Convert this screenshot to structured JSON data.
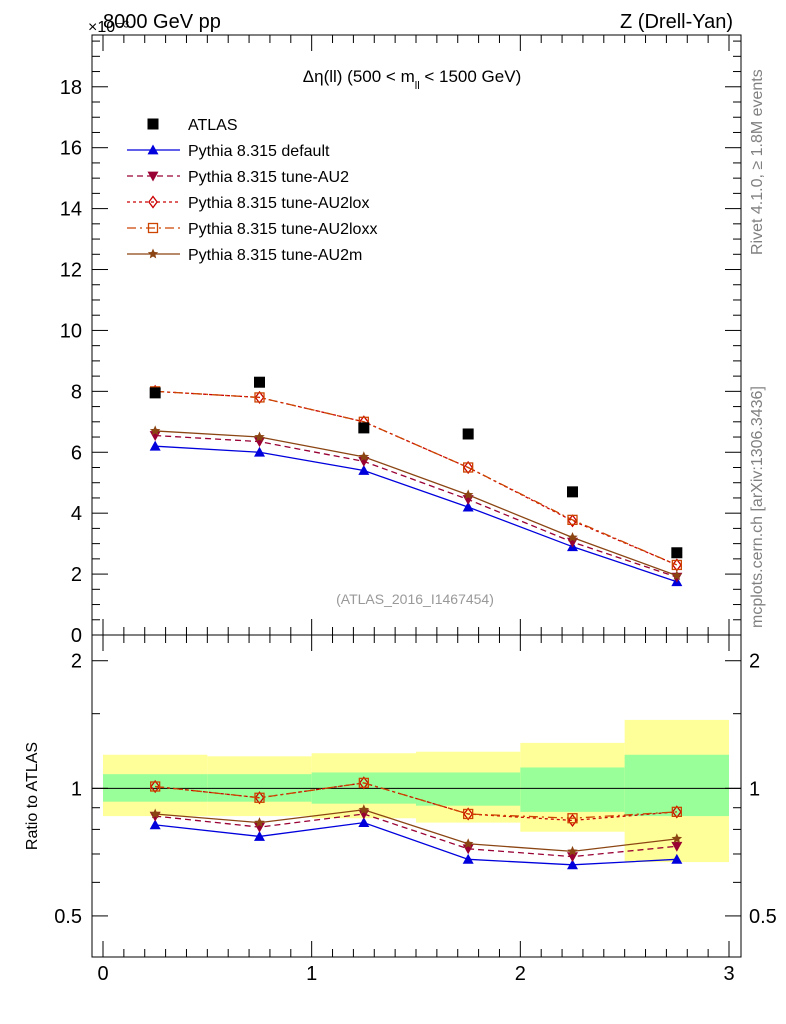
{
  "header": {
    "left_label": "8000 GeV pp",
    "exponent_label": "×10⁻³",
    "right_label": "Z (Drell-Yan)"
  },
  "side_labels": {
    "rivet": "Rivet 4.1.0, ≥ 1.8M events",
    "mcplots": "mcplots.cern.ch [arXiv:1306.3436]"
  },
  "chart_data": {
    "type": "line",
    "title": "Δη(ll) (500 < m_ll < 1500 GeV)",
    "title_parts": {
      "main": "Δη(ll) (500 < m",
      "sub": "ll",
      "rest": " < 1500 GeV)"
    },
    "watermark": "(ATLAS_2016_I1467454)",
    "xlabel": "",
    "ylabel_ratio": "Ratio to ATLAS",
    "xlim": [
      0,
      3
    ],
    "ylim": [
      0,
      19.7
    ],
    "ratio_ylim": [
      0.4,
      2.3
    ],
    "x_ticks": [
      "0",
      "1",
      "2",
      "3"
    ],
    "x_tick_values": [
      0,
      1,
      2,
      3
    ],
    "y_ticks": [
      "0",
      "2",
      "4",
      "6",
      "8",
      "10",
      "12",
      "14",
      "16",
      "18"
    ],
    "y_tick_values": [
      0,
      2,
      4,
      6,
      8,
      10,
      12,
      14,
      16,
      18
    ],
    "ratio_ticks": [
      "0.5",
      "1",
      "2"
    ],
    "ratio_tick_values": [
      0.5,
      1,
      2
    ],
    "x": [
      0.25,
      0.75,
      1.25,
      1.75,
      2.25,
      2.75
    ],
    "bin_edges": [
      0,
      0.5,
      1.0,
      1.5,
      2.0,
      2.5,
      3.0
    ],
    "data": {
      "name": "ATLAS",
      "values": [
        7.95,
        8.3,
        6.8,
        6.6,
        4.7,
        2.7
      ]
    },
    "bands": {
      "stat_lo": [
        0.93,
        0.93,
        0.92,
        0.91,
        0.88,
        0.86
      ],
      "stat_hi": [
        1.08,
        1.08,
        1.09,
        1.09,
        1.12,
        1.2
      ],
      "tot_lo": [
        0.86,
        0.86,
        0.85,
        0.83,
        0.79,
        0.67
      ],
      "tot_hi": [
        1.2,
        1.19,
        1.21,
        1.22,
        1.28,
        1.45
      ]
    },
    "series": [
      {
        "name": "Pythia 8.315 default",
        "color": "#0000dd",
        "dash": "",
        "marker": "triangle-up",
        "values": [
          6.2,
          6.0,
          5.4,
          4.2,
          2.9,
          1.75
        ],
        "ratio": [
          0.82,
          0.77,
          0.83,
          0.68,
          0.66,
          0.68
        ]
      },
      {
        "name": "Pythia 8.315 tune-AU2",
        "color": "#990033",
        "dash": "6,4",
        "marker": "triangle-down",
        "values": [
          6.55,
          6.35,
          5.7,
          4.45,
          3.05,
          1.9
        ],
        "ratio": [
          0.86,
          0.81,
          0.87,
          0.72,
          0.69,
          0.73
        ]
      },
      {
        "name": "Pythia 8.315 tune-AU2lox",
        "color": "#cc0000",
        "dash": "3,3",
        "marker": "diamond-open",
        "values": [
          8.0,
          7.8,
          7.0,
          5.5,
          3.75,
          2.3
        ],
        "ratio": [
          1.01,
          0.95,
          1.03,
          0.87,
          0.84,
          0.88
        ]
      },
      {
        "name": "Pythia 8.315 tune-AU2loxx",
        "color": "#cc4400",
        "dash": "9,4,2,4",
        "marker": "square-open",
        "values": [
          8.0,
          7.8,
          7.0,
          5.5,
          3.78,
          2.3
        ],
        "ratio": [
          1.01,
          0.95,
          1.03,
          0.87,
          0.85,
          0.88
        ]
      },
      {
        "name": "Pythia 8.315 tune-AU2m",
        "color": "#8b4513",
        "dash": "",
        "marker": "star",
        "values": [
          6.7,
          6.5,
          5.85,
          4.6,
          3.2,
          1.95
        ],
        "ratio": [
          0.87,
          0.83,
          0.89,
          0.74,
          0.71,
          0.76
        ]
      }
    ]
  }
}
